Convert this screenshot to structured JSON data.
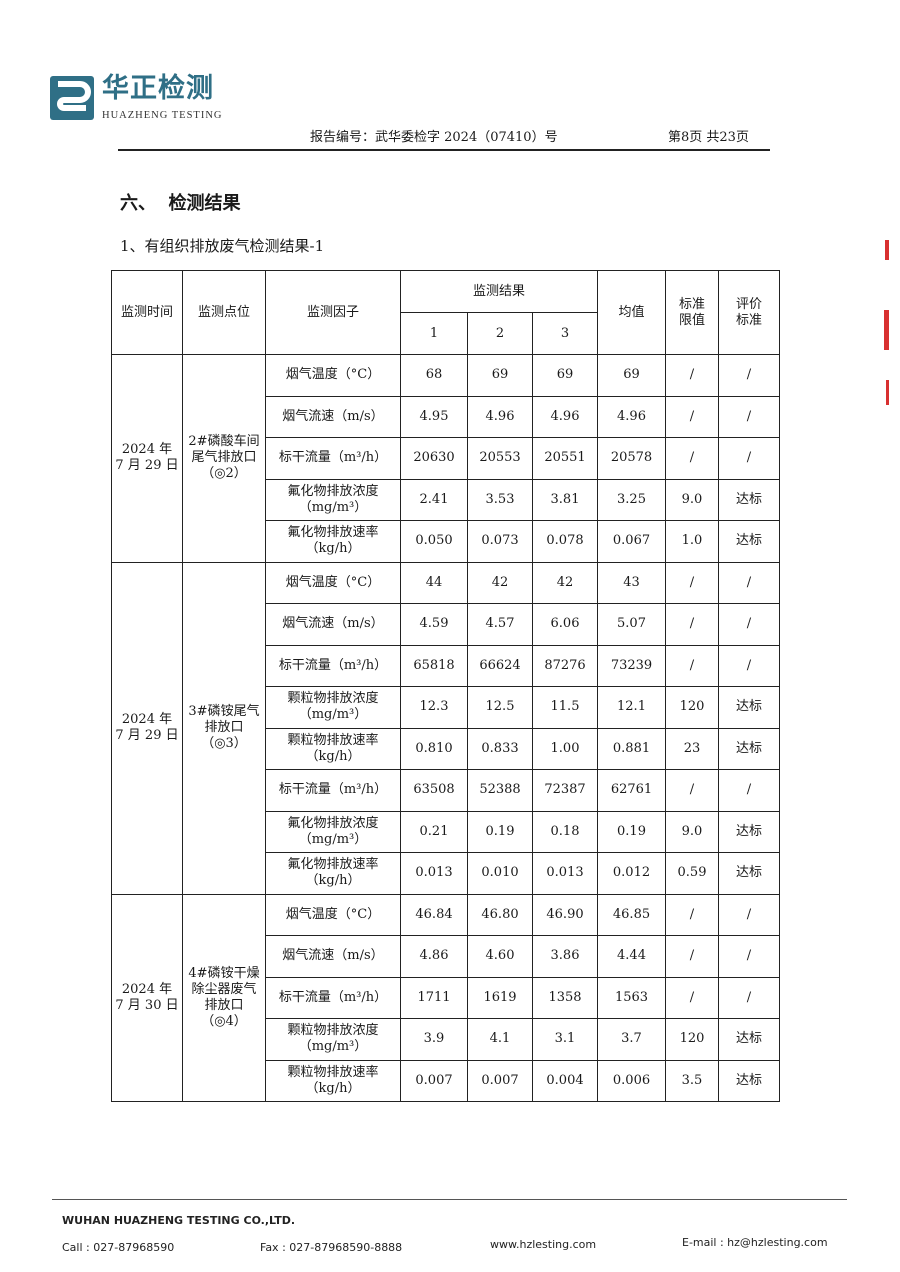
{
  "header": {
    "logo_cn": "华正检测",
    "logo_en": "HUAZHENG  TESTING",
    "report_no": "报告编号：武华委检字 2024（07410）号",
    "page_no": "第8页 共23页",
    "brand_color": "#2f6f86"
  },
  "section_title": "六、  检测结果",
  "sub_title": "1、有组织排放废气检测结果-1",
  "table": {
    "headers": {
      "time": "监测时间",
      "point": "监测点位",
      "factor": "监测因子",
      "results": "监测结果",
      "r1": "1",
      "r2": "2",
      "r3": "3",
      "avg": "均值",
      "limit": "标准\n限值",
      "eval": "评价\n标准"
    },
    "groups": [
      {
        "time": "2024 年\n7 月 29 日",
        "point": "2#磷酸车间\n尾气排放口\n（◎2）",
        "rows": [
          {
            "factor": "烟气温度（°C）",
            "v1": "68",
            "v2": "69",
            "v3": "69",
            "avg": "69",
            "limit": "/",
            "eval": "/"
          },
          {
            "factor": "烟气流速（m/s）",
            "v1": "4.95",
            "v2": "4.96",
            "v3": "4.96",
            "avg": "4.96",
            "limit": "/",
            "eval": "/"
          },
          {
            "factor": "标干流量（m³/h）",
            "v1": "20630",
            "v2": "20553",
            "v3": "20551",
            "avg": "20578",
            "limit": "/",
            "eval": "/"
          },
          {
            "factor": "氟化物排放浓度\n（mg/m³）",
            "v1": "2.41",
            "v2": "3.53",
            "v3": "3.81",
            "avg": "3.25",
            "limit": "9.0",
            "eval": "达标"
          },
          {
            "factor": "氟化物排放速率\n（kg/h）",
            "v1": "0.050",
            "v2": "0.073",
            "v3": "0.078",
            "avg": "0.067",
            "limit": "1.0",
            "eval": "达标"
          }
        ]
      },
      {
        "time": "2024 年\n7 月 29 日",
        "point": "3#磷铵尾气\n排放口\n（◎3）",
        "rows": [
          {
            "factor": "烟气温度（°C）",
            "v1": "44",
            "v2": "42",
            "v3": "42",
            "avg": "43",
            "limit": "/",
            "eval": "/"
          },
          {
            "factor": "烟气流速（m/s）",
            "v1": "4.59",
            "v2": "4.57",
            "v3": "6.06",
            "avg": "5.07",
            "limit": "/",
            "eval": "/"
          },
          {
            "factor": "标干流量（m³/h）",
            "v1": "65818",
            "v2": "66624",
            "v3": "87276",
            "avg": "73239",
            "limit": "/",
            "eval": "/"
          },
          {
            "factor": "颗粒物排放浓度\n（mg/m³）",
            "v1": "12.3",
            "v2": "12.5",
            "v3": "11.5",
            "avg": "12.1",
            "limit": "120",
            "eval": "达标"
          },
          {
            "factor": "颗粒物排放速率\n（kg/h）",
            "v1": "0.810",
            "v2": "0.833",
            "v3": "1.00",
            "avg": "0.881",
            "limit": "23",
            "eval": "达标"
          },
          {
            "factor": "标干流量（m³/h）",
            "v1": "63508",
            "v2": "52388",
            "v3": "72387",
            "avg": "62761",
            "limit": "/",
            "eval": "/"
          },
          {
            "factor": "氟化物排放浓度\n（mg/m³）",
            "v1": "0.21",
            "v2": "0.19",
            "v3": "0.18",
            "avg": "0.19",
            "limit": "9.0",
            "eval": "达标"
          },
          {
            "factor": "氟化物排放速率\n（kg/h）",
            "v1": "0.013",
            "v2": "0.010",
            "v3": "0.013",
            "avg": "0.012",
            "limit": "0.59",
            "eval": "达标"
          }
        ]
      },
      {
        "time": "2024 年\n7 月 30 日",
        "point": "4#磷铵干燥\n除尘器废气\n排放口\n（◎4）",
        "rows": [
          {
            "factor": "烟气温度（°C）",
            "v1": "46.84",
            "v2": "46.80",
            "v3": "46.90",
            "avg": "46.85",
            "limit": "/",
            "eval": "/"
          },
          {
            "factor": "烟气流速（m/s）",
            "v1": "4.86",
            "v2": "4.60",
            "v3": "3.86",
            "avg": "4.44",
            "limit": "/",
            "eval": "/"
          },
          {
            "factor": "标干流量（m³/h）",
            "v1": "1711",
            "v2": "1619",
            "v3": "1358",
            "avg": "1563",
            "limit": "/",
            "eval": "/"
          },
          {
            "factor": "颗粒物排放浓度\n（mg/m³）",
            "v1": "3.9",
            "v2": "4.1",
            "v3": "3.1",
            "avg": "3.7",
            "limit": "120",
            "eval": "达标"
          },
          {
            "factor": "颗粒物排放速率\n（kg/h）",
            "v1": "0.007",
            "v2": "0.007",
            "v3": "0.004",
            "avg": "0.006",
            "limit": "3.5",
            "eval": "达标"
          }
        ]
      }
    ]
  },
  "footer": {
    "company": "WUHAN HUAZHENG TESTING CO.,LTD.",
    "call": "Call : 027-87968590",
    "fax": "Fax : 027-87968590-8888",
    "website": "www.hzlesting.com",
    "email": "E-mail : hz@hzlesting.com"
  }
}
